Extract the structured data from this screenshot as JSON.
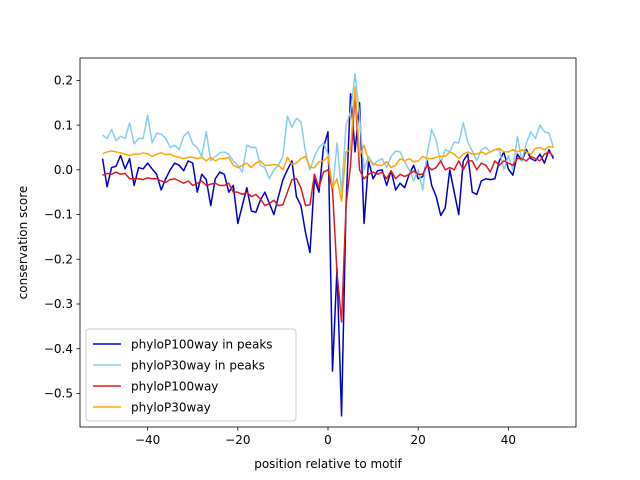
{
  "chart_data": {
    "type": "line",
    "title": "",
    "xlabel": "position relative to motif",
    "ylabel": "conservation score",
    "xlim": [
      -55,
      55
    ],
    "ylim": [
      -0.575,
      0.25
    ],
    "xticks": [
      -40,
      -20,
      0,
      20,
      40
    ],
    "yticks": [
      -0.5,
      -0.4,
      -0.3,
      -0.2,
      -0.1,
      0.0,
      0.1,
      0.2
    ],
    "xtick_labels": [
      "−40",
      "−20",
      "0",
      "20",
      "40"
    ],
    "ytick_labels": [
      "−0.5",
      "−0.4",
      "−0.3",
      "−0.2",
      "−0.1",
      "0.0",
      "0.1",
      "0.2"
    ],
    "grid": false,
    "legend_position": "lower-left",
    "x": [
      -50,
      -49,
      -48,
      -47,
      -46,
      -45,
      -44,
      -43,
      -42,
      -41,
      -40,
      -39,
      -38,
      -37,
      -36,
      -35,
      -34,
      -33,
      -32,
      -31,
      -30,
      -29,
      -28,
      -27,
      -26,
      -25,
      -24,
      -23,
      -22,
      -21,
      -20,
      -19,
      -18,
      -17,
      -16,
      -15,
      -14,
      -13,
      -12,
      -11,
      -10,
      -9,
      -8,
      -7,
      -6,
      -5,
      -4,
      -3,
      -2,
      -1,
      0,
      1,
      2,
      3,
      4,
      5,
      6,
      7,
      8,
      9,
      10,
      11,
      12,
      13,
      14,
      15,
      16,
      17,
      18,
      19,
      20,
      21,
      22,
      23,
      24,
      25,
      26,
      27,
      28,
      29,
      30,
      31,
      32,
      33,
      34,
      35,
      36,
      37,
      38,
      39,
      40,
      41,
      42,
      43,
      44,
      45,
      46,
      47,
      48,
      49,
      50
    ],
    "series": [
      {
        "name": "phyloP100way in peaks",
        "color": "#0000cd",
        "values": [
          0.025,
          -0.038,
          0.005,
          0.008,
          0.032,
          0.002,
          0.025,
          -0.035,
          0.005,
          0.002,
          0.015,
          0.002,
          -0.01,
          -0.045,
          -0.02,
          0.0,
          0.015,
          0.01,
          -0.002,
          0.02,
          0.015,
          -0.05,
          -0.01,
          -0.022,
          -0.08,
          -0.02,
          -0.005,
          -0.01,
          -0.05,
          -0.035,
          -0.12,
          -0.08,
          -0.04,
          -0.092,
          -0.095,
          -0.068,
          -0.05,
          -0.075,
          -0.1,
          -0.06,
          -0.022,
          0.0,
          0.02,
          -0.06,
          -0.08,
          -0.14,
          -0.185,
          -0.02,
          -0.05,
          0.05,
          0.085,
          -0.45,
          -0.22,
          -0.55,
          -0.08,
          0.17,
          0.04,
          0.15,
          -0.12,
          0.02,
          -0.02,
          -0.002,
          0.0,
          -0.035,
          -0.002,
          -0.045,
          -0.03,
          -0.04,
          -0.01,
          0.01,
          -0.02,
          -0.015,
          0.02,
          -0.035,
          -0.06,
          -0.102,
          -0.085,
          0.0,
          -0.05,
          -0.1,
          0.02,
          0.035,
          -0.05,
          -0.055,
          -0.025,
          -0.02,
          -0.022,
          -0.02,
          0.02,
          0.04,
          0.002,
          -0.012,
          0.035,
          0.02,
          0.045,
          0.025,
          0.02,
          0.035,
          0.015,
          0.045,
          0.025
        ]
      },
      {
        "name": "phyloP30way in peaks",
        "color": "#87ceeb",
        "values": [
          0.078,
          0.07,
          0.09,
          0.065,
          0.075,
          0.07,
          0.105,
          0.058,
          0.07,
          0.07,
          0.122,
          0.06,
          0.082,
          0.08,
          0.07,
          0.05,
          0.055,
          0.045,
          0.075,
          0.085,
          0.058,
          0.05,
          0.03,
          0.085,
          0.02,
          0.03,
          0.038,
          0.04,
          0.035,
          0.02,
          0.01,
          -0.005,
          0.055,
          0.05,
          0.05,
          0.01,
          0.005,
          -0.02,
          0.0,
          0.01,
          0.03,
          0.12,
          0.095,
          0.115,
          0.108,
          0.04,
          0.0,
          0.03,
          0.05,
          0.06,
          0.035,
          -0.05,
          0.06,
          -0.05,
          0.1,
          0.13,
          0.215,
          0.12,
          0.0,
          0.03,
          0.01,
          0.02,
          0.025,
          0.005,
          0.03,
          0.042,
          0.04,
          0.018,
          0.0,
          -0.025,
          0.0,
          -0.045,
          0.035,
          0.09,
          0.065,
          0.015,
          0.045,
          0.04,
          0.062,
          0.06,
          0.105,
          0.062,
          0.042,
          0.02,
          0.045,
          0.05,
          0.04,
          0.045,
          0.045,
          0.0,
          0.032,
          0.0,
          0.075,
          0.02,
          0.06,
          0.085,
          0.07,
          0.1,
          0.085,
          0.082,
          0.05
        ]
      },
      {
        "name": "phyloP100way",
        "color": "#e31a1c",
        "values": [
          -0.012,
          -0.008,
          -0.01,
          -0.005,
          -0.01,
          -0.008,
          -0.02,
          -0.02,
          -0.02,
          -0.022,
          -0.018,
          -0.02,
          -0.02,
          -0.025,
          -0.028,
          -0.022,
          -0.02,
          -0.025,
          -0.03,
          -0.025,
          -0.035,
          -0.03,
          -0.025,
          -0.035,
          -0.032,
          -0.03,
          -0.035,
          -0.035,
          -0.03,
          -0.05,
          -0.05,
          -0.055,
          -0.05,
          -0.06,
          -0.055,
          -0.065,
          -0.08,
          -0.075,
          -0.068,
          -0.08,
          -0.078,
          -0.05,
          -0.022,
          -0.02,
          -0.04,
          -0.08,
          -0.078,
          -0.01,
          -0.04,
          -0.005,
          0.0,
          -0.045,
          -0.23,
          -0.34,
          -0.08,
          0.01,
          0.17,
          0.0,
          -0.02,
          -0.01,
          -0.005,
          -0.01,
          -0.005,
          -0.02,
          -0.002,
          -0.02,
          -0.01,
          -0.015,
          -0.01,
          -0.003,
          -0.01,
          -0.01,
          0.01,
          0.0,
          0.005,
          0.02,
          0.0,
          0.005,
          0.0,
          0.02,
          0.0,
          0.02,
          0.02,
          0.0,
          0.015,
          0.01,
          -0.005,
          0.02,
          0.01,
          0.02,
          0.015,
          0.01,
          0.025,
          0.025,
          0.02,
          0.03,
          0.025,
          0.02,
          0.035,
          0.04,
          0.03
        ]
      },
      {
        "name": "phyloP30way",
        "color": "#ffa500",
        "values": [
          0.036,
          0.04,
          0.042,
          0.04,
          0.038,
          0.035,
          0.032,
          0.035,
          0.035,
          0.038,
          0.036,
          0.03,
          0.035,
          0.038,
          0.034,
          0.035,
          0.03,
          0.028,
          0.025,
          0.028,
          0.028,
          0.025,
          0.028,
          0.02,
          0.028,
          0.02,
          0.025,
          0.025,
          0.028,
          0.01,
          0.005,
          0.01,
          0.015,
          0.005,
          0.015,
          0.02,
          0.01,
          0.01,
          0.012,
          0.01,
          0.0,
          0.028,
          0.012,
          0.015,
          0.025,
          0.03,
          0.005,
          0.005,
          0.018,
          0.02,
          0.03,
          -0.04,
          -0.02,
          -0.07,
          0.04,
          0.045,
          0.185,
          0.03,
          0.055,
          0.02,
          0.015,
          0.01,
          0.01,
          0.018,
          0.005,
          0.01,
          0.025,
          0.02,
          0.025,
          0.018,
          0.02,
          0.03,
          0.025,
          0.025,
          0.028,
          0.03,
          0.03,
          0.04,
          0.035,
          0.025,
          0.035,
          0.04,
          0.035,
          0.035,
          0.04,
          0.035,
          0.04,
          0.045,
          0.048,
          0.04,
          0.04,
          0.045,
          0.04,
          0.045,
          0.04,
          0.035,
          0.048,
          0.05,
          0.045,
          0.052,
          0.05
        ]
      }
    ]
  }
}
